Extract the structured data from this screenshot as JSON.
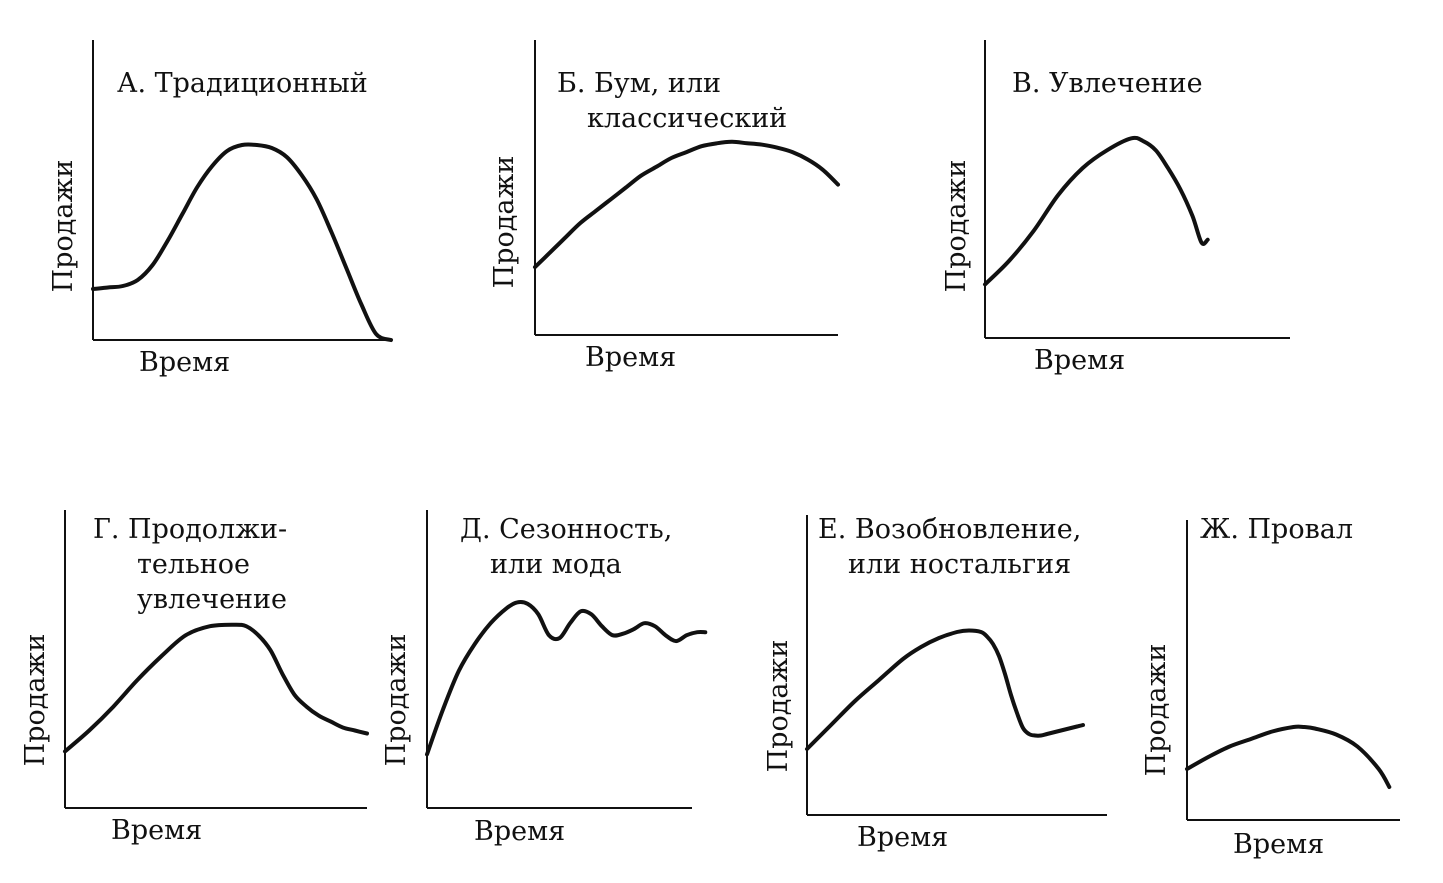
{
  "chart_data": [
    {
      "id": "A",
      "type": "line",
      "title_lines": [
        "А. Традиционный"
      ],
      "xlabel": "Время",
      "ylabel": "Продажи",
      "xlim": [
        0,
        100
      ],
      "ylim": [
        0,
        100
      ],
      "x": [
        0,
        5,
        10,
        15,
        20,
        25,
        30,
        35,
        40,
        45,
        50,
        55,
        60,
        65,
        70,
        75,
        80,
        85,
        90,
        95,
        100
      ],
      "y": [
        17,
        17.5,
        18,
        20,
        25,
        33,
        42,
        51,
        58,
        63,
        65,
        65,
        64,
        61,
        55,
        47,
        36,
        24,
        12,
        2,
        0
      ],
      "stroke": "#111111"
    },
    {
      "id": "Б",
      "type": "line",
      "title_lines": [
        "Б. Бум, или",
        "классический"
      ],
      "xlabel": "Время",
      "ylabel": "Продажи",
      "xlim": [
        0,
        100
      ],
      "ylim": [
        0,
        100
      ],
      "x": [
        0,
        5,
        10,
        15,
        20,
        25,
        30,
        35,
        40,
        45,
        50,
        55,
        60,
        65,
        70,
        75,
        80,
        85,
        90,
        95,
        100
      ],
      "y": [
        23,
        28,
        33,
        38,
        42,
        46,
        50,
        54,
        57,
        60,
        62,
        64,
        65,
        65.5,
        65,
        64.5,
        63.5,
        62,
        59.5,
        56,
        51
      ],
      "stroke": "#111111"
    },
    {
      "id": "В",
      "type": "line",
      "title_lines": [
        "В. Увлечение"
      ],
      "xlabel": "Время",
      "ylabel": "Продажи",
      "xlim": [
        0,
        100
      ],
      "ylim": [
        0,
        100
      ],
      "x": [
        0,
        8,
        16,
        24,
        32,
        40,
        48,
        52,
        56,
        60,
        64,
        68,
        71,
        73
      ],
      "y": [
        18,
        26,
        36,
        48,
        57,
        63,
        67,
        66,
        63,
        57,
        50,
        41,
        32,
        33
      ],
      "stroke": "#111111"
    },
    {
      "id": "Г",
      "type": "line",
      "title_lines": [
        "Г. Продолжи-",
        "тельное",
        "увлечение"
      ],
      "xlabel": "Время",
      "ylabel": "Продажи",
      "xlim": [
        0,
        100
      ],
      "ylim": [
        0,
        100
      ],
      "x": [
        0,
        8,
        16,
        24,
        32,
        40,
        48,
        56,
        60,
        64,
        68,
        72,
        76,
        80,
        84,
        88,
        92,
        96,
        100
      ],
      "y": [
        19,
        26,
        34,
        43,
        51,
        58,
        61,
        61.5,
        61,
        58,
        53,
        45,
        38,
        34,
        31,
        29,
        27,
        26,
        25
      ],
      "stroke": "#111111"
    },
    {
      "id": "Д",
      "type": "line",
      "title_lines": [
        "Д. Сезонность,",
        "или мода"
      ],
      "xlabel": "Время",
      "ylabel": "Продажи",
      "xlim": [
        0,
        100
      ],
      "ylim": [
        0,
        100
      ],
      "x": [
        0,
        6,
        12,
        18,
        24,
        30,
        34,
        38,
        42,
        46,
        50,
        54,
        58,
        62,
        66,
        70,
        74,
        78,
        82,
        86,
        90,
        94,
        98,
        102,
        105
      ],
      "y": [
        18,
        33,
        46,
        55,
        62,
        67,
        69,
        68.5,
        65,
        58,
        57,
        62,
        66,
        65,
        61,
        58,
        58.5,
        60,
        62,
        61,
        58,
        56,
        58,
        59,
        59
      ],
      "stroke": "#111111"
    },
    {
      "id": "Е",
      "type": "line",
      "title_lines": [
        "Е. Возобновление,",
        "или ностальгия"
      ],
      "xlabel": "Время",
      "ylabel": "Продажи",
      "xlim": [
        0,
        100
      ],
      "ylim": [
        0,
        100
      ],
      "x": [
        0,
        8,
        16,
        24,
        32,
        38,
        44,
        50,
        54,
        58,
        60,
        62,
        64,
        66,
        68,
        70,
        72,
        74,
        76,
        78,
        80,
        82,
        84,
        86,
        88,
        90,
        92
      ],
      "y": [
        22,
        30,
        38,
        45,
        52,
        56,
        59,
        61,
        61.5,
        61,
        59.5,
        57,
        53,
        47,
        40,
        34,
        29,
        27,
        26.5,
        26.5,
        27,
        27.5,
        28,
        28.5,
        29,
        29.5,
        30
      ],
      "stroke": "#111111"
    },
    {
      "id": "Ж",
      "type": "line",
      "title_lines": [
        "Ж. Провал"
      ],
      "xlabel": "Время",
      "ylabel": "Продажи",
      "xlim": [
        0,
        100
      ],
      "ylim": [
        0,
        100
      ],
      "x": [
        0,
        10,
        20,
        30,
        40,
        50,
        55,
        60,
        70,
        80,
        90,
        95
      ],
      "y": [
        17,
        21,
        24.5,
        27,
        29.5,
        31,
        31,
        30.5,
        28.5,
        24.5,
        17,
        11
      ],
      "stroke": "#111111"
    }
  ]
}
